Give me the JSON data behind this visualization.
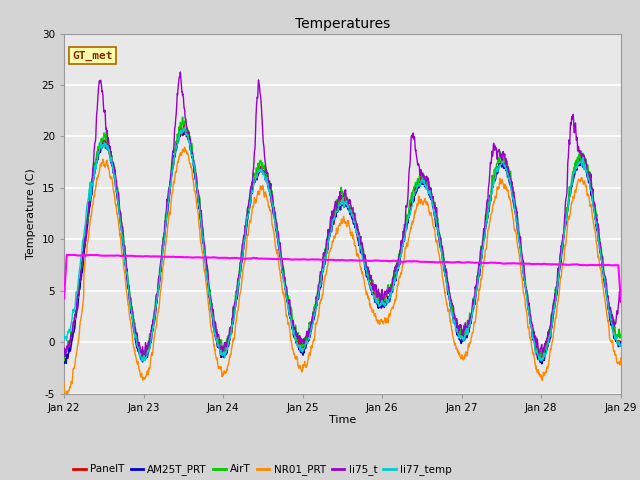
{
  "title": "Temperatures",
  "xlabel": "Time",
  "ylabel": "Temperature (C)",
  "ylim": [
    -5,
    30
  ],
  "xlim": [
    0,
    7
  ],
  "xtick_positions": [
    0,
    1,
    2,
    3,
    4,
    5,
    6,
    7
  ],
  "xtick_labels": [
    "Jan 22",
    "Jan 23",
    "Jan 24",
    "Jan 25",
    "Jan 26",
    "Jan 27",
    "Jan 28",
    "Jan 29"
  ],
  "ytick_positions": [
    -5,
    0,
    5,
    10,
    15,
    20,
    25,
    30
  ],
  "fig_bg": "#d4d4d4",
  "plot_bg": "#e8e8e8",
  "grid_color": "#ffffff",
  "series": {
    "PanelT": {
      "color": "#dd0000",
      "lw": 1.0
    },
    "AM25T_PRT": {
      "color": "#0000cc",
      "lw": 1.0
    },
    "AirT": {
      "color": "#00cc00",
      "lw": 1.0
    },
    "NR01_PRT": {
      "color": "#ff8800",
      "lw": 1.0
    },
    "li75_t": {
      "color": "#9900cc",
      "lw": 1.0
    },
    "li77_temp": {
      "color": "#00cccc",
      "lw": 1.0
    },
    "TC Prof A -32cm": {
      "color": "#ff00ff",
      "lw": 1.5
    }
  },
  "annotation": {
    "text": "GT_met",
    "fontsize": 8,
    "color": "#882200",
    "bg": "#ffffaa",
    "border_color": "#aa6600"
  }
}
